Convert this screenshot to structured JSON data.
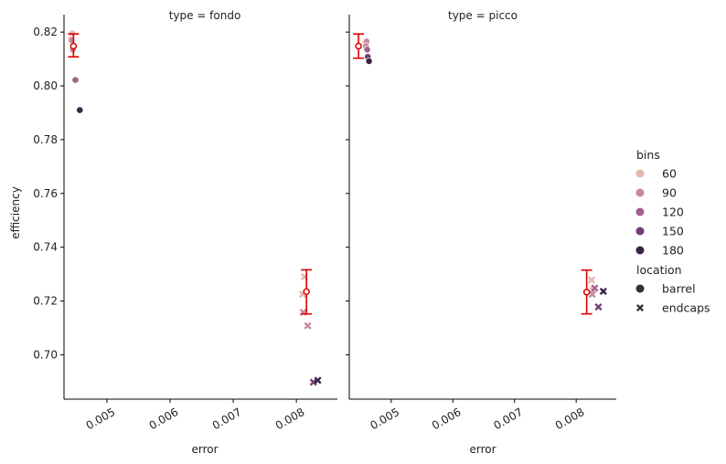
{
  "chart_data": {
    "type": "scatter",
    "xlabel": "error",
    "ylabel": "efficiency",
    "xlim": [
      0.00432,
      0.00865
    ],
    "ylim": [
      0.6835,
      0.8265
    ],
    "x_ticks": [
      0.005,
      0.006,
      0.007,
      0.008
    ],
    "x_tick_labels": [
      "0.005",
      "0.006",
      "0.007",
      "0.008"
    ],
    "y_ticks": [
      0.7,
      0.72,
      0.74,
      0.76,
      0.78,
      0.8,
      0.82
    ],
    "y_tick_labels": [
      "0.70",
      "0.72",
      "0.74",
      "0.76",
      "0.78",
      "0.80",
      "0.82"
    ],
    "grid": false,
    "facet_label_prefix": "type = ",
    "legend": {
      "position": "right",
      "hue_title": "bins",
      "hue_levels": [
        {
          "label": "60",
          "color": "#e7b5ad"
        },
        {
          "label": "90",
          "color": "#c9889b"
        },
        {
          "label": "120",
          "color": "#a3608b"
        },
        {
          "label": "150",
          "color": "#723f72"
        },
        {
          "label": "180",
          "color": "#3c2448"
        }
      ],
      "style_title": "location",
      "style_levels": [
        {
          "label": "barrel",
          "marker": "circle"
        },
        {
          "label": "endcaps",
          "marker": "x"
        }
      ]
    },
    "errorbar_color": "#dd0000",
    "panels": [
      {
        "facet_value": "fondo",
        "points": [
          {
            "bins": 60,
            "location": "barrel",
            "x": 0.00445,
            "y": 0.8195
          },
          {
            "bins": 60,
            "location": "barrel",
            "x": 0.00443,
            "y": 0.8175
          },
          {
            "bins": 90,
            "location": "barrel",
            "x": 0.00444,
            "y": 0.817
          },
          {
            "bins": 90,
            "location": "barrel",
            "x": 0.00446,
            "y": 0.8135
          },
          {
            "bins": 120,
            "location": "barrel",
            "x": 0.0045,
            "y": 0.8022
          },
          {
            "bins": 180,
            "location": "barrel",
            "x": 0.00457,
            "y": 0.791
          },
          {
            "bins": 60,
            "location": "endcaps",
            "x": 0.00813,
            "y": 0.729
          },
          {
            "bins": 60,
            "location": "endcaps",
            "x": 0.0081,
            "y": 0.7225
          },
          {
            "bins": 90,
            "location": "endcaps",
            "x": 0.00811,
            "y": 0.7158
          },
          {
            "bins": 90,
            "location": "endcaps",
            "x": 0.00818,
            "y": 0.7108
          },
          {
            "bins": 150,
            "location": "endcaps",
            "x": 0.00827,
            "y": 0.6898
          },
          {
            "bins": 180,
            "location": "endcaps",
            "x": 0.00834,
            "y": 0.6905
          }
        ],
        "errorbars": [
          {
            "x": 0.00447,
            "y": 0.8148,
            "ylow": 0.8108,
            "yhigh": 0.8193
          },
          {
            "x": 0.00816,
            "y": 0.7235,
            "ylow": 0.7152,
            "yhigh": 0.7316
          }
        ]
      },
      {
        "facet_value": "picco",
        "points": [
          {
            "bins": 60,
            "location": "barrel",
            "x": 0.00458,
            "y": 0.816
          },
          {
            "bins": 90,
            "location": "barrel",
            "x": 0.0046,
            "y": 0.8165
          },
          {
            "bins": 90,
            "location": "barrel",
            "x": 0.00459,
            "y": 0.8148
          },
          {
            "bins": 120,
            "location": "barrel",
            "x": 0.00461,
            "y": 0.8135
          },
          {
            "bins": 150,
            "location": "barrel",
            "x": 0.00462,
            "y": 0.8108
          },
          {
            "bins": 180,
            "location": "barrel",
            "x": 0.00464,
            "y": 0.8092
          },
          {
            "bins": 60,
            "location": "endcaps",
            "x": 0.00825,
            "y": 0.7278
          },
          {
            "bins": 60,
            "location": "endcaps",
            "x": 0.00827,
            "y": 0.724
          },
          {
            "bins": 90,
            "location": "endcaps",
            "x": 0.00826,
            "y": 0.7225
          },
          {
            "bins": 120,
            "location": "endcaps",
            "x": 0.0083,
            "y": 0.7248
          },
          {
            "bins": 150,
            "location": "endcaps",
            "x": 0.00836,
            "y": 0.7178
          },
          {
            "bins": 180,
            "location": "endcaps",
            "x": 0.00844,
            "y": 0.7236
          }
        ],
        "errorbars": [
          {
            "x": 0.00447,
            "y": 0.8148,
            "ylow": 0.8103,
            "yhigh": 0.8193
          },
          {
            "x": 0.00817,
            "y": 0.7233,
            "ylow": 0.7152,
            "yhigh": 0.7315
          }
        ]
      }
    ]
  }
}
